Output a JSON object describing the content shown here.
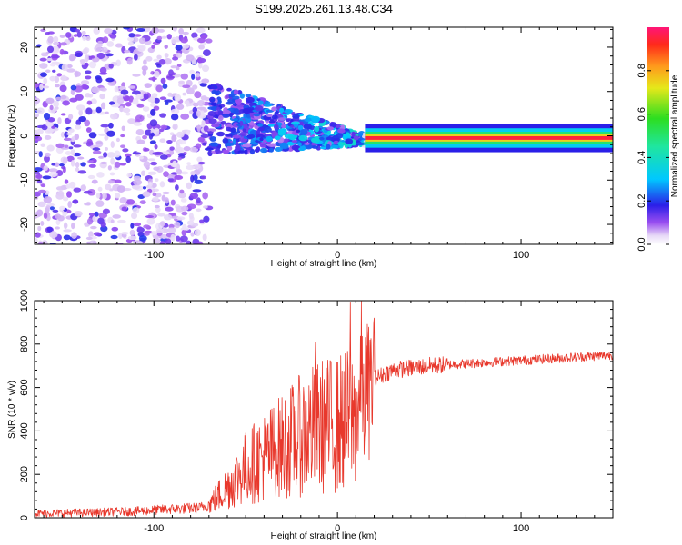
{
  "title": "S199.2025.261.13.48.C34",
  "chart_data": [
    {
      "type": "heatmap",
      "title": "S199.2025.261.13.48.C34",
      "xlabel": "Height of straight line (km)",
      "ylabel": "Frequency (Hz)",
      "xlim": [
        -165,
        150
      ],
      "ylim": [
        -24.5,
        24.5
      ],
      "xticks": [
        -100,
        0,
        100
      ],
      "yticks": [
        -20,
        -10,
        0,
        10,
        20
      ],
      "colorbar": {
        "label": "Normalized spectral amplitude",
        "range": [
          0.0,
          1.0
        ],
        "ticks": [
          0.0,
          0.2,
          0.4,
          0.6,
          0.8
        ],
        "tick_labels": [
          "0.0",
          "0.2",
          "0.4",
          "0.6",
          "0.8"
        ]
      },
      "features": [
        {
          "segment": "scattered weak noise",
          "x_range": [
            -165,
            -70
          ],
          "freq_range": [
            -24.5,
            24.5
          ],
          "amplitude": 0.05
        },
        {
          "segment": "converging band",
          "x_range": [
            -70,
            15
          ],
          "freq_start": 4,
          "freq_end": -1,
          "amplitude": 0.25
        },
        {
          "segment": "stable narrow tone",
          "x_range": [
            15,
            150
          ],
          "freq": -0.5,
          "amplitude": 0.95
        }
      ]
    },
    {
      "type": "line",
      "xlabel": "Height of straight line (km)",
      "ylabel": "SNR (10 * v/v)",
      "xlim": [
        -165,
        150
      ],
      "ylim": [
        0,
        1000
      ],
      "xticks": [
        -100,
        0,
        100
      ],
      "yticks": [
        0,
        200,
        400,
        600,
        800,
        1000
      ],
      "series": [
        {
          "name": "SNR",
          "color": "#e8382c",
          "x": [
            -165,
            -150,
            -130,
            -110,
            -90,
            -75,
            -70,
            -60,
            -50,
            -40,
            -30,
            -20,
            -10,
            0,
            10,
            15,
            20,
            30,
            40,
            50,
            60,
            80,
            100,
            120,
            140,
            150
          ],
          "values": [
            20,
            22,
            25,
            30,
            40,
            45,
            60,
            140,
            230,
            280,
            330,
            380,
            420,
            430,
            470,
            560,
            640,
            680,
            690,
            700,
            705,
            715,
            725,
            735,
            745,
            750
          ],
          "spikes": [
            {
              "x": -12,
              "value": 810
            },
            {
              "x": -6,
              "value": 690
            },
            {
              "x": 7,
              "value": 990
            },
            {
              "x": 13,
              "value": 1000
            },
            {
              "x": 20,
              "value": 920
            }
          ]
        }
      ]
    }
  ]
}
